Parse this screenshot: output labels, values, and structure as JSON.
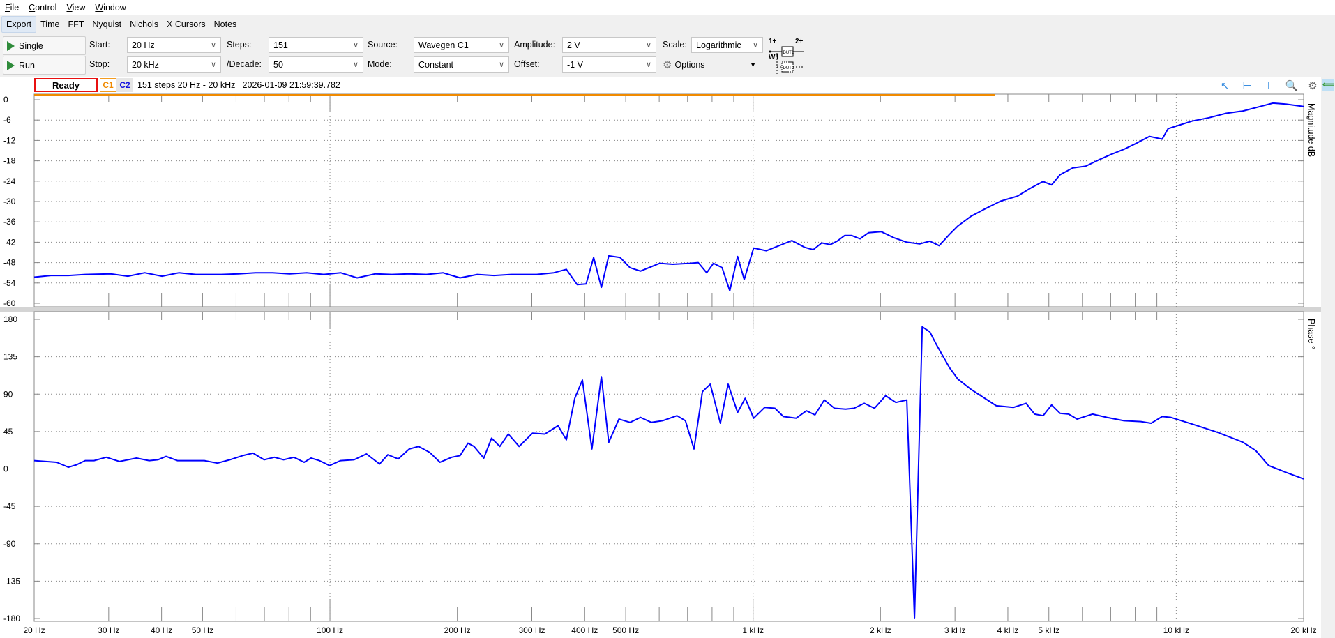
{
  "menu": [
    "File",
    "Control",
    "View",
    "Window"
  ],
  "tabs": [
    "Export",
    "Time",
    "FFT",
    "Nyquist",
    "Nichols",
    "X Cursors",
    "Notes"
  ],
  "controls": {
    "single_label": "Single",
    "run_label": "Run",
    "start_label": "Start:",
    "start_value": "20 Hz",
    "stop_label": "Stop:",
    "stop_value": "20 kHz",
    "steps_label": "Steps:",
    "steps_value": "151",
    "decade_label": "/Decade:",
    "decade_value": "50",
    "source_label": "Source:",
    "source_value": "Wavegen C1",
    "mode_label": "Mode:",
    "mode_value": "Constant",
    "amplitude_label": "Amplitude:",
    "amplitude_value": "2 V",
    "offset_label": "Offset:",
    "offset_value": "-1 V",
    "scale_label": "Scale:",
    "scale_value": "Logarithmic",
    "options_label": "Options",
    "dut": {
      "in": "1+",
      "w": "W1",
      "out": "2+",
      "dut1": "DUT1",
      "dut2": "DUT2"
    }
  },
  "status": {
    "state": "Ready",
    "c1": "C1",
    "c2": "C2",
    "info": "151 steps  20 Hz - 20 kHz | 2026-01-09 21:59:39.782"
  },
  "colors": {
    "series": "#0000ff",
    "c1": "#f08a00",
    "c2": "#1010e0",
    "ready_border": "#e81010"
  },
  "chart_data": [
    {
      "type": "line",
      "ylabel": "Magnitude  dB",
      "xscale": "log",
      "xlim": [
        20,
        20000
      ],
      "ylim": [
        -60,
        0
      ],
      "grid": true,
      "x_ticks": [
        20,
        30,
        40,
        50,
        100,
        200,
        300,
        400,
        500,
        1000,
        2000,
        3000,
        4000,
        5000,
        10000,
        20000
      ],
      "x_tick_labels": [
        "20 Hz",
        "30 Hz",
        "40 Hz",
        "50 Hz",
        "100 Hz",
        "200 Hz",
        "300 Hz",
        "400 Hz",
        "500 Hz",
        "1 kHz",
        "2 kHz",
        "3 kHz",
        "4 kHz",
        "5 kHz",
        "10 kHz",
        "20 kHz"
      ],
      "y_ticks": [
        0,
        -6,
        -12,
        -18,
        -24,
        -30,
        -36,
        -42,
        -48,
        -54,
        -60
      ],
      "y_tick_labels": [
        "0",
        "-6",
        "-12",
        "-18",
        "-24",
        "-30",
        "-36",
        "-42",
        "-48",
        "-54",
        "-60"
      ],
      "series": [
        {
          "x": [
            20,
            21.9,
            24.1,
            26.4,
            30.3,
            33.3,
            36.5,
            40.1,
            44,
            48.2,
            55.4,
            60.8,
            66.7,
            73.2,
            80.3,
            88.1,
            96.7,
            106,
            116,
            128,
            140,
            154,
            169,
            185,
            203,
            223,
            244,
            268,
            308,
            338,
            362,
            384,
            403,
            420,
            438,
            456,
            485,
            512,
            542,
            567,
            602,
            646,
            709,
            742,
            777,
            806,
            845,
            881,
            919,
            953,
            1003,
            1075,
            1126,
            1235,
            1324,
            1387,
            1453,
            1522,
            1579,
            1647,
            1708,
            1789,
            1874,
            2009,
            2154,
            2308,
            2475,
            2616,
            2753,
            2911,
            3049,
            3268,
            3503,
            3843,
            4217,
            4520,
            4845,
            5075,
            5315,
            5697,
            6107,
            6546,
            7017,
            7522,
            8062,
            8642,
            9264,
            9569,
            10163,
            10894,
            11954,
            13118,
            14393,
            15794,
            16930,
            18146,
            20000
          ],
          "y": [
            -52.3,
            -51.8,
            -51.8,
            -51.5,
            -51.3,
            -52.0,
            -51.0,
            -52.0,
            -51.0,
            -51.5,
            -51.5,
            -51.3,
            -51.0,
            -51.0,
            -51.3,
            -51.0,
            -51.5,
            -51.0,
            -52.5,
            -51.3,
            -51.5,
            -51.3,
            -51.5,
            -51.0,
            -52.5,
            -51.5,
            -51.8,
            -51.5,
            -51.5,
            -51.0,
            -50.0,
            -54.5,
            -54.3,
            -46.5,
            -55.3,
            -46.0,
            -46.5,
            -49.5,
            -50.5,
            -49.5,
            -48.2,
            -48.5,
            -48.2,
            -48.0,
            -51.0,
            -48.2,
            -49.5,
            -56.3,
            -46.2,
            -53.0,
            -43.7,
            -44.5,
            -43.5,
            -41.5,
            -43.5,
            -44.2,
            -42.2,
            -42.7,
            -41.7,
            -40.0,
            -40.0,
            -41.0,
            -39.2,
            -38.9,
            -40.7,
            -42.0,
            -42.5,
            -41.7,
            -43.0,
            -39.7,
            -37.2,
            -34.4,
            -32.4,
            -29.9,
            -28.4,
            -26.1,
            -24.1,
            -25.1,
            -22.1,
            -20.1,
            -19.6,
            -17.8,
            -16.1,
            -14.6,
            -12.8,
            -10.8,
            -11.6,
            -8.5,
            -7.5,
            -6.3,
            -5.3,
            -4.0,
            -3.3,
            -2.0,
            -1.0,
            -1.3,
            -2.0
          ]
        }
      ]
    },
    {
      "type": "line",
      "ylabel": "Phase  °",
      "xscale": "log",
      "xlim": [
        20,
        20000
      ],
      "ylim": [
        -180,
        180
      ],
      "grid": true,
      "y_ticks": [
        180,
        135,
        90,
        45,
        0,
        -45,
        -90,
        -135,
        -180
      ],
      "y_tick_labels": [
        "180",
        "135",
        "90",
        "45",
        "0",
        "-45",
        "-90",
        "-135",
        "-180"
      ],
      "series": [
        {
          "x": [
            20,
            22.6,
            24.1,
            25.2,
            26.4,
            27.7,
            29.6,
            31.8,
            34.9,
            37.4,
            39.2,
            41,
            43.6,
            46,
            50.5,
            54.2,
            58,
            62.2,
            65.8,
            69.9,
            73.9,
            77.7,
            82.2,
            86.9,
            90.2,
            94.4,
            99.8,
            106,
            114,
            122,
            131,
            137,
            145,
            154,
            162,
            172,
            182,
            194,
            203,
            212,
            219,
            231,
            241,
            252,
            264,
            280,
            301,
            322,
            346,
            362,
            379,
            395,
            416,
            438,
            456,
            482,
            512,
            542,
            575,
            611,
            661,
            692,
            725,
            759,
            792,
            837,
            873,
            919,
            958,
            1003,
            1065,
            1126,
            1179,
            1264,
            1337,
            1400,
            1473,
            1557,
            1655,
            1732,
            1831,
            1936,
            2057,
            2175,
            2308,
            2407,
            2510,
            2616,
            2715,
            2911,
            3049,
            3268,
            3503,
            3755,
            4121,
            4417,
            4626,
            4845,
            5075,
            5315,
            5567,
            5830,
            6339,
            6855,
            7522,
            8251,
            8723,
            9264,
            9703,
            10894,
            12524,
            14393,
            15424,
            16536,
            18146,
            20000
          ],
          "y": [
            10,
            8,
            2,
            5,
            10,
            10,
            14,
            9,
            13,
            10,
            11,
            15,
            10,
            10,
            10,
            7,
            11,
            16,
            19,
            11,
            14,
            11,
            14,
            8,
            13,
            10,
            4,
            10,
            11,
            18,
            6,
            17,
            12,
            24,
            27,
            20,
            8,
            14,
            16,
            31,
            27,
            13,
            37,
            27,
            42,
            27,
            43,
            42,
            52,
            35,
            85,
            107,
            24,
            111,
            32,
            60,
            56,
            62,
            56,
            58,
            64,
            58,
            24,
            93,
            102,
            55,
            102,
            68,
            85,
            61,
            74,
            73,
            63,
            61,
            70,
            65,
            83,
            73,
            72,
            73,
            79,
            73,
            88,
            80,
            83,
            -180,
            171,
            165,
            149,
            122,
            108,
            96,
            86,
            76,
            74,
            79,
            66,
            64,
            77,
            67,
            66,
            60,
            66,
            62,
            58,
            57,
            55,
            63,
            62,
            54,
            44,
            32,
            22,
            4,
            -4,
            -12
          ]
        }
      ]
    }
  ]
}
